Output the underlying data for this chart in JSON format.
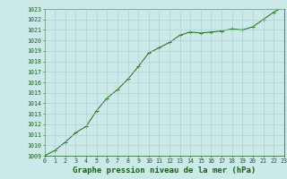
{
  "x": [
    0,
    1,
    2,
    3,
    4,
    5,
    6,
    7,
    8,
    9,
    10,
    11,
    12,
    13,
    14,
    15,
    16,
    17,
    18,
    19,
    20,
    21,
    22,
    23
  ],
  "y": [
    1009.0,
    1009.5,
    1010.3,
    1011.2,
    1011.8,
    1013.3,
    1014.5,
    1015.3,
    1016.3,
    1017.5,
    1018.8,
    1019.3,
    1019.8,
    1020.5,
    1020.8,
    1020.7,
    1020.8,
    1020.9,
    1021.1,
    1021.0,
    1021.3,
    1022.0,
    1022.7,
    1023.2
  ],
  "xlim": [
    0,
    23
  ],
  "ylim": [
    1009,
    1023
  ],
  "yticks": [
    1009,
    1010,
    1011,
    1012,
    1013,
    1014,
    1015,
    1016,
    1017,
    1018,
    1019,
    1020,
    1021,
    1022,
    1023
  ],
  "xticks": [
    0,
    1,
    2,
    3,
    4,
    5,
    6,
    7,
    8,
    9,
    10,
    11,
    12,
    13,
    14,
    15,
    16,
    17,
    18,
    19,
    20,
    21,
    22,
    23
  ],
  "xlabel": "Graphe pression niveau de la mer (hPa)",
  "line_color": "#1a6b1a",
  "marker": "+",
  "marker_size": 3.5,
  "bg_color": "#cce9ea",
  "grid_color": "#aacccc",
  "tick_label_color": "#1a5c1a",
  "xlabel_color": "#1a5c1a",
  "tick_fontsize": 4.8,
  "xlabel_fontsize": 6.5,
  "linewidth": 0.7,
  "marker_linewidth": 0.7
}
